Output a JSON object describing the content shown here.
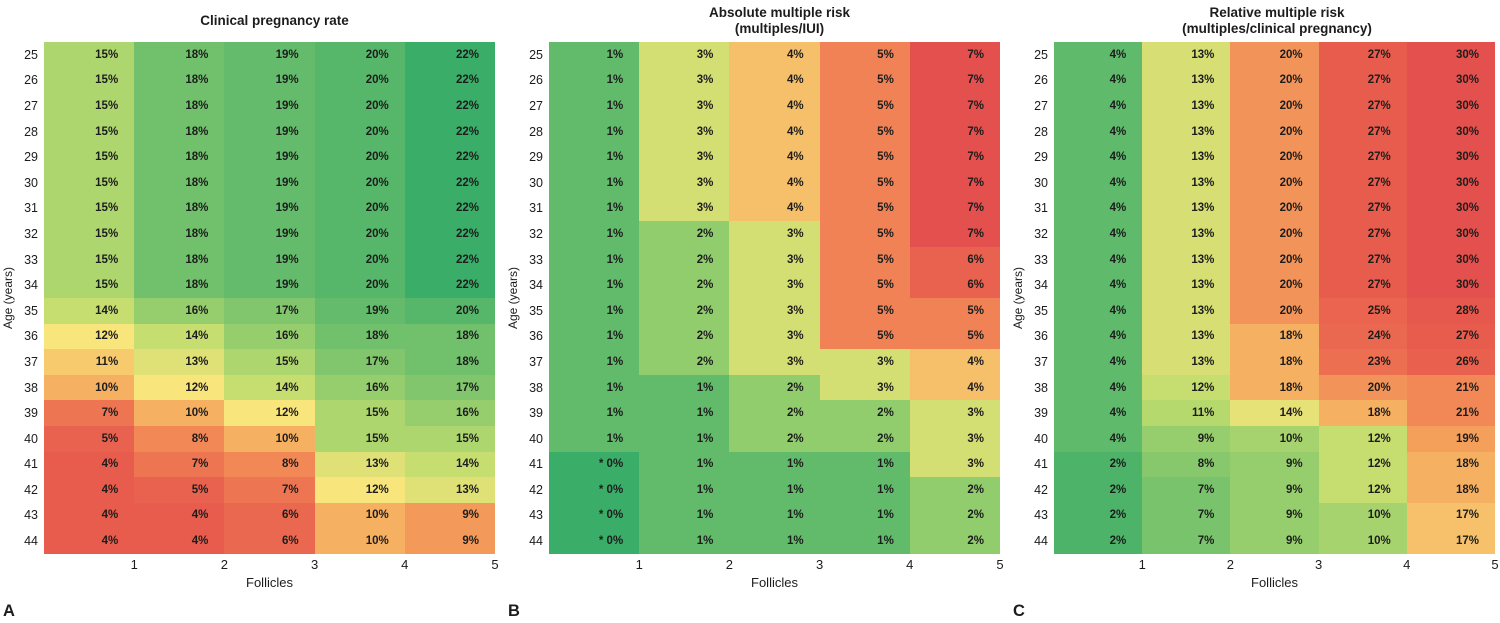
{
  "colors": {
    "colormap_stops": [
      {
        "t": 0.0,
        "color": "#e4504d"
      },
      {
        "t": 0.22,
        "color": "#ec6a50"
      },
      {
        "t": 0.38,
        "color": "#f5a55c"
      },
      {
        "t": 0.5,
        "color": "#f8e57b"
      },
      {
        "t": 0.62,
        "color": "#bcdb6e"
      },
      {
        "t": 0.76,
        "color": "#7cc46d"
      },
      {
        "t": 1.0,
        "color": "#3aad68"
      }
    ]
  },
  "chart_data": [
    {
      "type": "heatmap",
      "panel": "A",
      "title": "Clinical pregnancy rate",
      "subtitle": "",
      "xlabel": "Follicles",
      "ylabel": "Age (years)",
      "x_categories": [
        "1",
        "2",
        "3",
        "4",
        "5"
      ],
      "y_categories": [
        "25",
        "26",
        "27",
        "28",
        "29",
        "30",
        "31",
        "32",
        "33",
        "34",
        "35",
        "36",
        "37",
        "38",
        "39",
        "40",
        "41",
        "42",
        "43",
        "44"
      ],
      "color_scale": {
        "domain": [
          2,
          22
        ],
        "direction": "higher_green"
      },
      "rows": [
        [
          "15%",
          "18%",
          "19%",
          "20%",
          "22%"
        ],
        [
          "15%",
          "18%",
          "19%",
          "20%",
          "22%"
        ],
        [
          "15%",
          "18%",
          "19%",
          "20%",
          "22%"
        ],
        [
          "15%",
          "18%",
          "19%",
          "20%",
          "22%"
        ],
        [
          "15%",
          "18%",
          "19%",
          "20%",
          "22%"
        ],
        [
          "15%",
          "18%",
          "19%",
          "20%",
          "22%"
        ],
        [
          "15%",
          "18%",
          "19%",
          "20%",
          "22%"
        ],
        [
          "15%",
          "18%",
          "19%",
          "20%",
          "22%"
        ],
        [
          "15%",
          "18%",
          "19%",
          "20%",
          "22%"
        ],
        [
          "15%",
          "18%",
          "19%",
          "20%",
          "22%"
        ],
        [
          "14%",
          "16%",
          "17%",
          "19%",
          "20%"
        ],
        [
          "12%",
          "14%",
          "16%",
          "18%",
          "18%"
        ],
        [
          "11%",
          "13%",
          "15%",
          "17%",
          "18%"
        ],
        [
          "10%",
          "12%",
          "14%",
          "16%",
          "17%"
        ],
        [
          "7%",
          "10%",
          "12%",
          "15%",
          "16%"
        ],
        [
          "5%",
          "8%",
          "10%",
          "15%",
          "15%"
        ],
        [
          "4%",
          "7%",
          "8%",
          "13%",
          "14%"
        ],
        [
          "4%",
          "5%",
          "7%",
          "12%",
          "13%"
        ],
        [
          "4%",
          "4%",
          "6%",
          "10%",
          "9%"
        ],
        [
          "4%",
          "4%",
          "6%",
          "10%",
          "9%"
        ]
      ]
    },
    {
      "type": "heatmap",
      "panel": "B",
      "title": "Absolute multiple risk",
      "subtitle": "(multiples/IUI)",
      "xlabel": "Follicles",
      "ylabel": "Age (years)",
      "x_categories": [
        "1",
        "2",
        "3",
        "4",
        "5"
      ],
      "y_categories": [
        "25",
        "26",
        "27",
        "28",
        "29",
        "30",
        "31",
        "32",
        "33",
        "34",
        "35",
        "36",
        "37",
        "38",
        "39",
        "40",
        "41",
        "42",
        "43",
        "44"
      ],
      "color_scale": {
        "domain": [
          0,
          7
        ],
        "direction": "higher_red"
      },
      "rows": [
        [
          "1%",
          "3%",
          "4%",
          "5%",
          "7%"
        ],
        [
          "1%",
          "3%",
          "4%",
          "5%",
          "7%"
        ],
        [
          "1%",
          "3%",
          "4%",
          "5%",
          "7%"
        ],
        [
          "1%",
          "3%",
          "4%",
          "5%",
          "7%"
        ],
        [
          "1%",
          "3%",
          "4%",
          "5%",
          "7%"
        ],
        [
          "1%",
          "3%",
          "4%",
          "5%",
          "7%"
        ],
        [
          "1%",
          "3%",
          "4%",
          "5%",
          "7%"
        ],
        [
          "1%",
          "2%",
          "3%",
          "5%",
          "7%"
        ],
        [
          "1%",
          "2%",
          "3%",
          "5%",
          "6%"
        ],
        [
          "1%",
          "2%",
          "3%",
          "5%",
          "6%"
        ],
        [
          "1%",
          "2%",
          "3%",
          "5%",
          "5%"
        ],
        [
          "1%",
          "2%",
          "3%",
          "5%",
          "5%"
        ],
        [
          "1%",
          "2%",
          "3%",
          "3%",
          "4%"
        ],
        [
          "1%",
          "1%",
          "2%",
          "3%",
          "4%"
        ],
        [
          "1%",
          "1%",
          "2%",
          "2%",
          "3%"
        ],
        [
          "1%",
          "1%",
          "2%",
          "2%",
          "3%"
        ],
        [
          "* 0%",
          "1%",
          "1%",
          "1%",
          "3%"
        ],
        [
          "* 0%",
          "1%",
          "1%",
          "1%",
          "2%"
        ],
        [
          "* 0%",
          "1%",
          "1%",
          "1%",
          "2%"
        ],
        [
          "* 0%",
          "1%",
          "1%",
          "1%",
          "2%"
        ]
      ]
    },
    {
      "type": "heatmap",
      "panel": "C",
      "title": "Relative multiple risk",
      "subtitle": "(multiples/clinical pregnancy)",
      "xlabel": "Follicles",
      "ylabel": "Age (years)",
      "x_categories": [
        "1",
        "2",
        "3",
        "4",
        "5"
      ],
      "y_categories": [
        "25",
        "26",
        "27",
        "28",
        "29",
        "30",
        "31",
        "32",
        "33",
        "34",
        "35",
        "36",
        "37",
        "38",
        "39",
        "40",
        "41",
        "42",
        "43",
        "44"
      ],
      "color_scale": {
        "domain": [
          0,
          30
        ],
        "direction": "higher_red"
      },
      "rows": [
        [
          "4%",
          "13%",
          "20%",
          "27%",
          "30%"
        ],
        [
          "4%",
          "13%",
          "20%",
          "27%",
          "30%"
        ],
        [
          "4%",
          "13%",
          "20%",
          "27%",
          "30%"
        ],
        [
          "4%",
          "13%",
          "20%",
          "27%",
          "30%"
        ],
        [
          "4%",
          "13%",
          "20%",
          "27%",
          "30%"
        ],
        [
          "4%",
          "13%",
          "20%",
          "27%",
          "30%"
        ],
        [
          "4%",
          "13%",
          "20%",
          "27%",
          "30%"
        ],
        [
          "4%",
          "13%",
          "20%",
          "27%",
          "30%"
        ],
        [
          "4%",
          "13%",
          "20%",
          "27%",
          "30%"
        ],
        [
          "4%",
          "13%",
          "20%",
          "27%",
          "30%"
        ],
        [
          "4%",
          "13%",
          "20%",
          "25%",
          "28%"
        ],
        [
          "4%",
          "13%",
          "18%",
          "24%",
          "27%"
        ],
        [
          "4%",
          "13%",
          "18%",
          "23%",
          "26%"
        ],
        [
          "4%",
          "12%",
          "18%",
          "20%",
          "21%"
        ],
        [
          "4%",
          "11%",
          "14%",
          "18%",
          "21%"
        ],
        [
          "4%",
          "9%",
          "10%",
          "12%",
          "19%"
        ],
        [
          "2%",
          "8%",
          "9%",
          "12%",
          "18%"
        ],
        [
          "2%",
          "7%",
          "9%",
          "12%",
          "18%"
        ],
        [
          "2%",
          "7%",
          "9%",
          "10%",
          "17%"
        ],
        [
          "2%",
          "7%",
          "9%",
          "10%",
          "17%"
        ]
      ]
    }
  ]
}
